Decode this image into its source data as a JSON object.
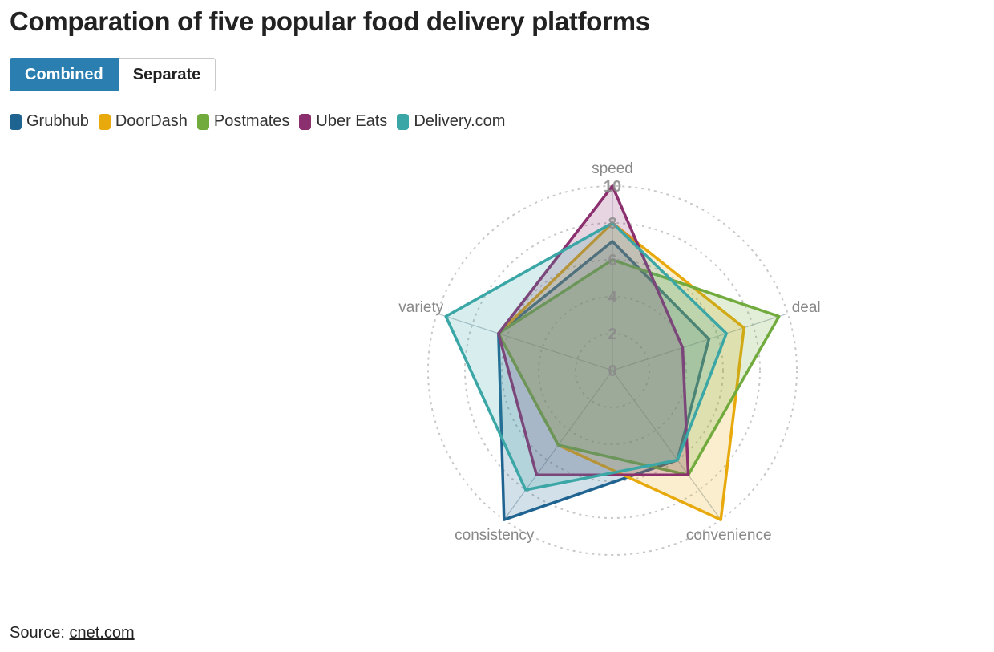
{
  "title": "Comparation of five popular food delivery platforms",
  "toggle": {
    "combined_label": "Combined",
    "separate_label": "Separate",
    "selected": "Combined"
  },
  "source": {
    "prefix": "Source: ",
    "link_text": "cnet.com"
  },
  "colors": {
    "accent": "#2a7fb0",
    "grid": "#c8c8c8",
    "axis_label": "#888888"
  },
  "chart_data": {
    "type": "radar",
    "title": "Comparation of five popular food delivery platforms",
    "axes": [
      "speed",
      "deal",
      "convenience",
      "consistency",
      "variety"
    ],
    "rlim": [
      0,
      10
    ],
    "r_ticks": [
      0,
      2,
      4,
      6,
      8,
      10
    ],
    "grid": true,
    "legend_position": "top-left",
    "series": [
      {
        "name": "Grubhub",
        "color": "#1f6391",
        "values": [
          7,
          5.5,
          6,
          10,
          6.5
        ]
      },
      {
        "name": "DoorDash",
        "color": "#e8a90c",
        "values": [
          8,
          7.5,
          10,
          5,
          6.5
        ]
      },
      {
        "name": "Postmates",
        "color": "#72ab3d",
        "values": [
          6,
          9.5,
          7,
          5,
          6.5
        ]
      },
      {
        "name": "Uber Eats",
        "color": "#8b2f6e",
        "values": [
          10,
          4,
          7,
          7,
          6.5
        ]
      },
      {
        "name": "Delivery.com",
        "color": "#3aa6a6",
        "values": [
          8,
          6.5,
          6,
          8,
          9.5
        ]
      }
    ]
  }
}
